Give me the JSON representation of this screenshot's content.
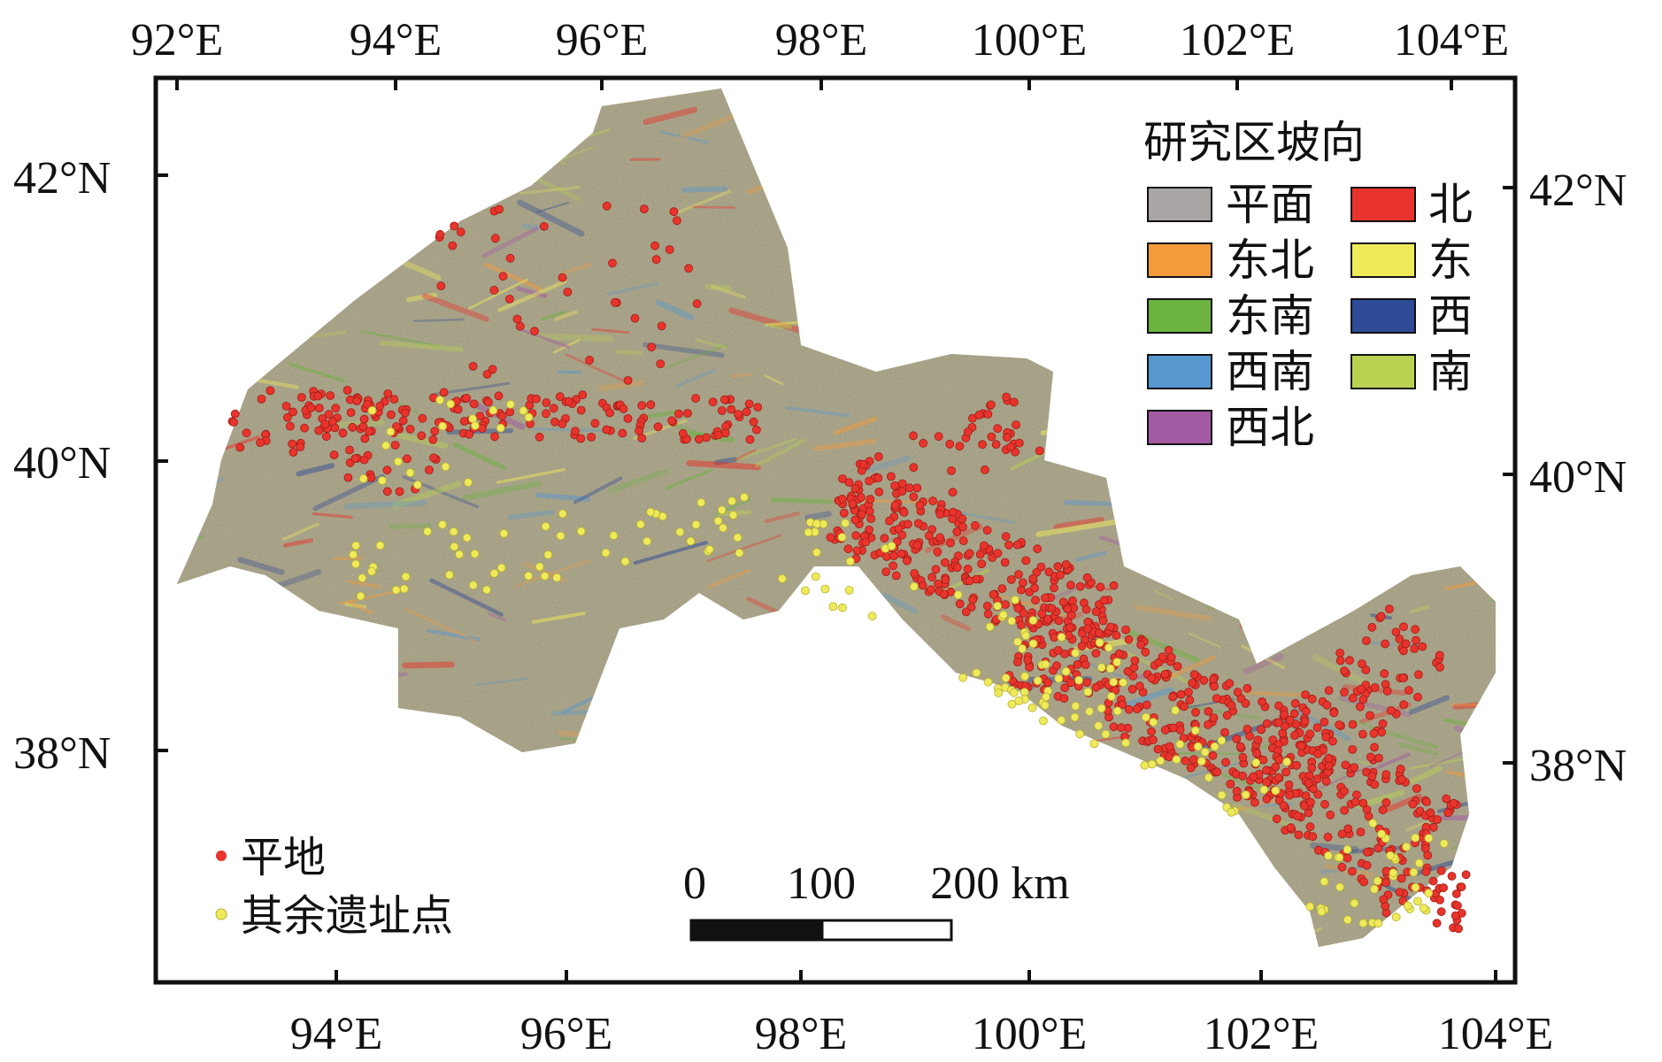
{
  "map": {
    "lon_labels_top": [
      "92°E",
      "94°E",
      "96°E",
      "98°E",
      "100°E",
      "102°E",
      "104°E"
    ],
    "lon_labels_bottom": [
      "94°E",
      "96°E",
      "98°E",
      "100°E",
      "102°E",
      "104°E"
    ],
    "lat_labels_left": [
      "42°N",
      "40°N",
      "38°N"
    ],
    "lat_labels_right": [
      "42°N",
      "40°N",
      "38°N"
    ]
  },
  "legend": {
    "title": "研究区坡向",
    "items": [
      {
        "label": "平面",
        "color": "#a8a5a4"
      },
      {
        "label": "北",
        "color": "#e8342c"
      },
      {
        "label": "东北",
        "color": "#f39a3c"
      },
      {
        "label": "东",
        "color": "#eeea5a"
      },
      {
        "label": "东南",
        "color": "#6bb23f"
      },
      {
        "label": "西",
        "color": "#2f4a96"
      },
      {
        "label": "西南",
        "color": "#5797cf"
      },
      {
        "label": "南",
        "color": "#b9d251"
      },
      {
        "label": "西北",
        "color": "#a25aa2"
      }
    ]
  },
  "sites": {
    "items": [
      {
        "label": "平地",
        "color": "#e8342c"
      },
      {
        "label": "其余遗址点",
        "color": "#eeea5a"
      }
    ]
  },
  "scale_bar": {
    "labels": [
      "0",
      "100",
      "200 km"
    ]
  },
  "colors": {
    "terrain_base": "#7f7448",
    "terrain_dark": "#6a6040",
    "frame": "#111111",
    "flat_site": "#e8342c",
    "other_site": "#eeea5a"
  }
}
